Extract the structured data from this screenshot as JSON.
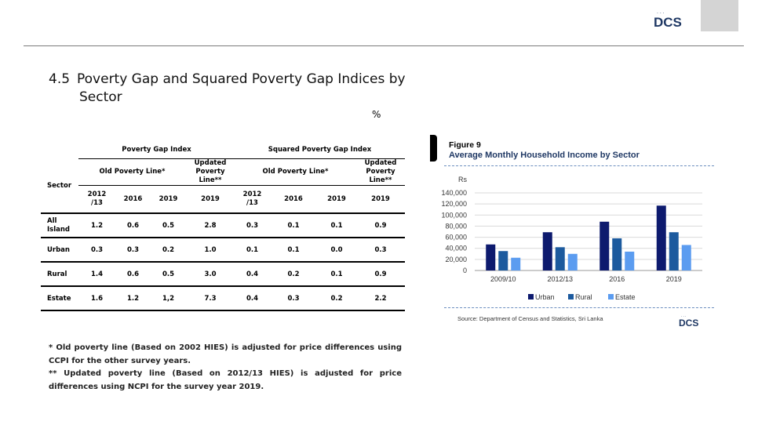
{
  "header": {
    "logo_text": "DCS",
    "logo_top_text": "ශ්‍රී"
  },
  "title": {
    "number": "4.5",
    "line1": "Poverty Gap and Squared Poverty Gap Indices by",
    "line2": "Sector"
  },
  "unit": "%",
  "table": {
    "group_pgi": "Poverty Gap Index",
    "group_spgi": "Squared Poverty Gap Index",
    "sector_label": "Sector",
    "old_line": "Old Poverty Line*",
    "updated_line_1": "Updated",
    "updated_line_2": "Poverty",
    "updated_line_3": "Line**",
    "year_2012_a": "2012",
    "year_2012_b": "/13",
    "year_2016": "2016",
    "year_2019": "2019",
    "rows": [
      {
        "sector_1": "All",
        "sector_2": "Island",
        "v": [
          "1.2",
          "0.6",
          "0.5",
          "2.8",
          "0.3",
          "0.1",
          "0.1",
          "0.9"
        ]
      },
      {
        "sector_1": "Urban",
        "sector_2": "",
        "v": [
          "0.3",
          "0.3",
          "0.2",
          "1.0",
          "0.1",
          "0.1",
          "0.0",
          "0.3"
        ]
      },
      {
        "sector_1": "Rural",
        "sector_2": "",
        "v": [
          "1.4",
          "0.6",
          "0.5",
          "3.0",
          "0.4",
          "0.2",
          "0.1",
          "0.9"
        ]
      },
      {
        "sector_1": "Estate",
        "sector_2": "",
        "v": [
          "1.6",
          "1.2",
          "1,2",
          "7.3",
          "0.4",
          "0.3",
          "0.2",
          "2.2"
        ]
      }
    ]
  },
  "notes": {
    "note1": "* Old poverty line (Based on 2002 HIES) is adjusted for price differences using CCPI for the other survey years.",
    "note2": "** Updated poverty line (Based on 2012/13 HIES) is adjusted for price differences using NCPI for the survey year 2019."
  },
  "figure": {
    "label": "Figure 9",
    "title": "Average Monthly Household Income by Sector",
    "source": "Source:  Department of Census and Statistics, Sri Lanka"
  },
  "chart_data": {
    "type": "bar",
    "title": "Average Monthly Household Income by Sector",
    "ylabel": "Rs",
    "xlabel": "",
    "ylim": [
      0,
      140000
    ],
    "yticks": [
      0,
      20000,
      40000,
      60000,
      80000,
      100000,
      120000,
      140000
    ],
    "ytick_labels": [
      "0",
      "20,000",
      "40,000",
      "60,000",
      "80,000",
      "100,000",
      "120,000",
      "140,000"
    ],
    "categories": [
      "2009/10",
      "2012/13",
      "2016",
      "2019"
    ],
    "series": [
      {
        "name": "Urban",
        "values": [
          47000,
          69000,
          88000,
          117000
        ]
      },
      {
        "name": "Rural",
        "values": [
          35000,
          42000,
          58000,
          69000
        ]
      },
      {
        "name": "Estate",
        "values": [
          23000,
          30000,
          34000,
          46000
        ]
      }
    ],
    "colors": [
      "#0d1a6e",
      "#1c5a9e",
      "#5b9cf0"
    ],
    "grid": true,
    "legend": "bottom"
  }
}
